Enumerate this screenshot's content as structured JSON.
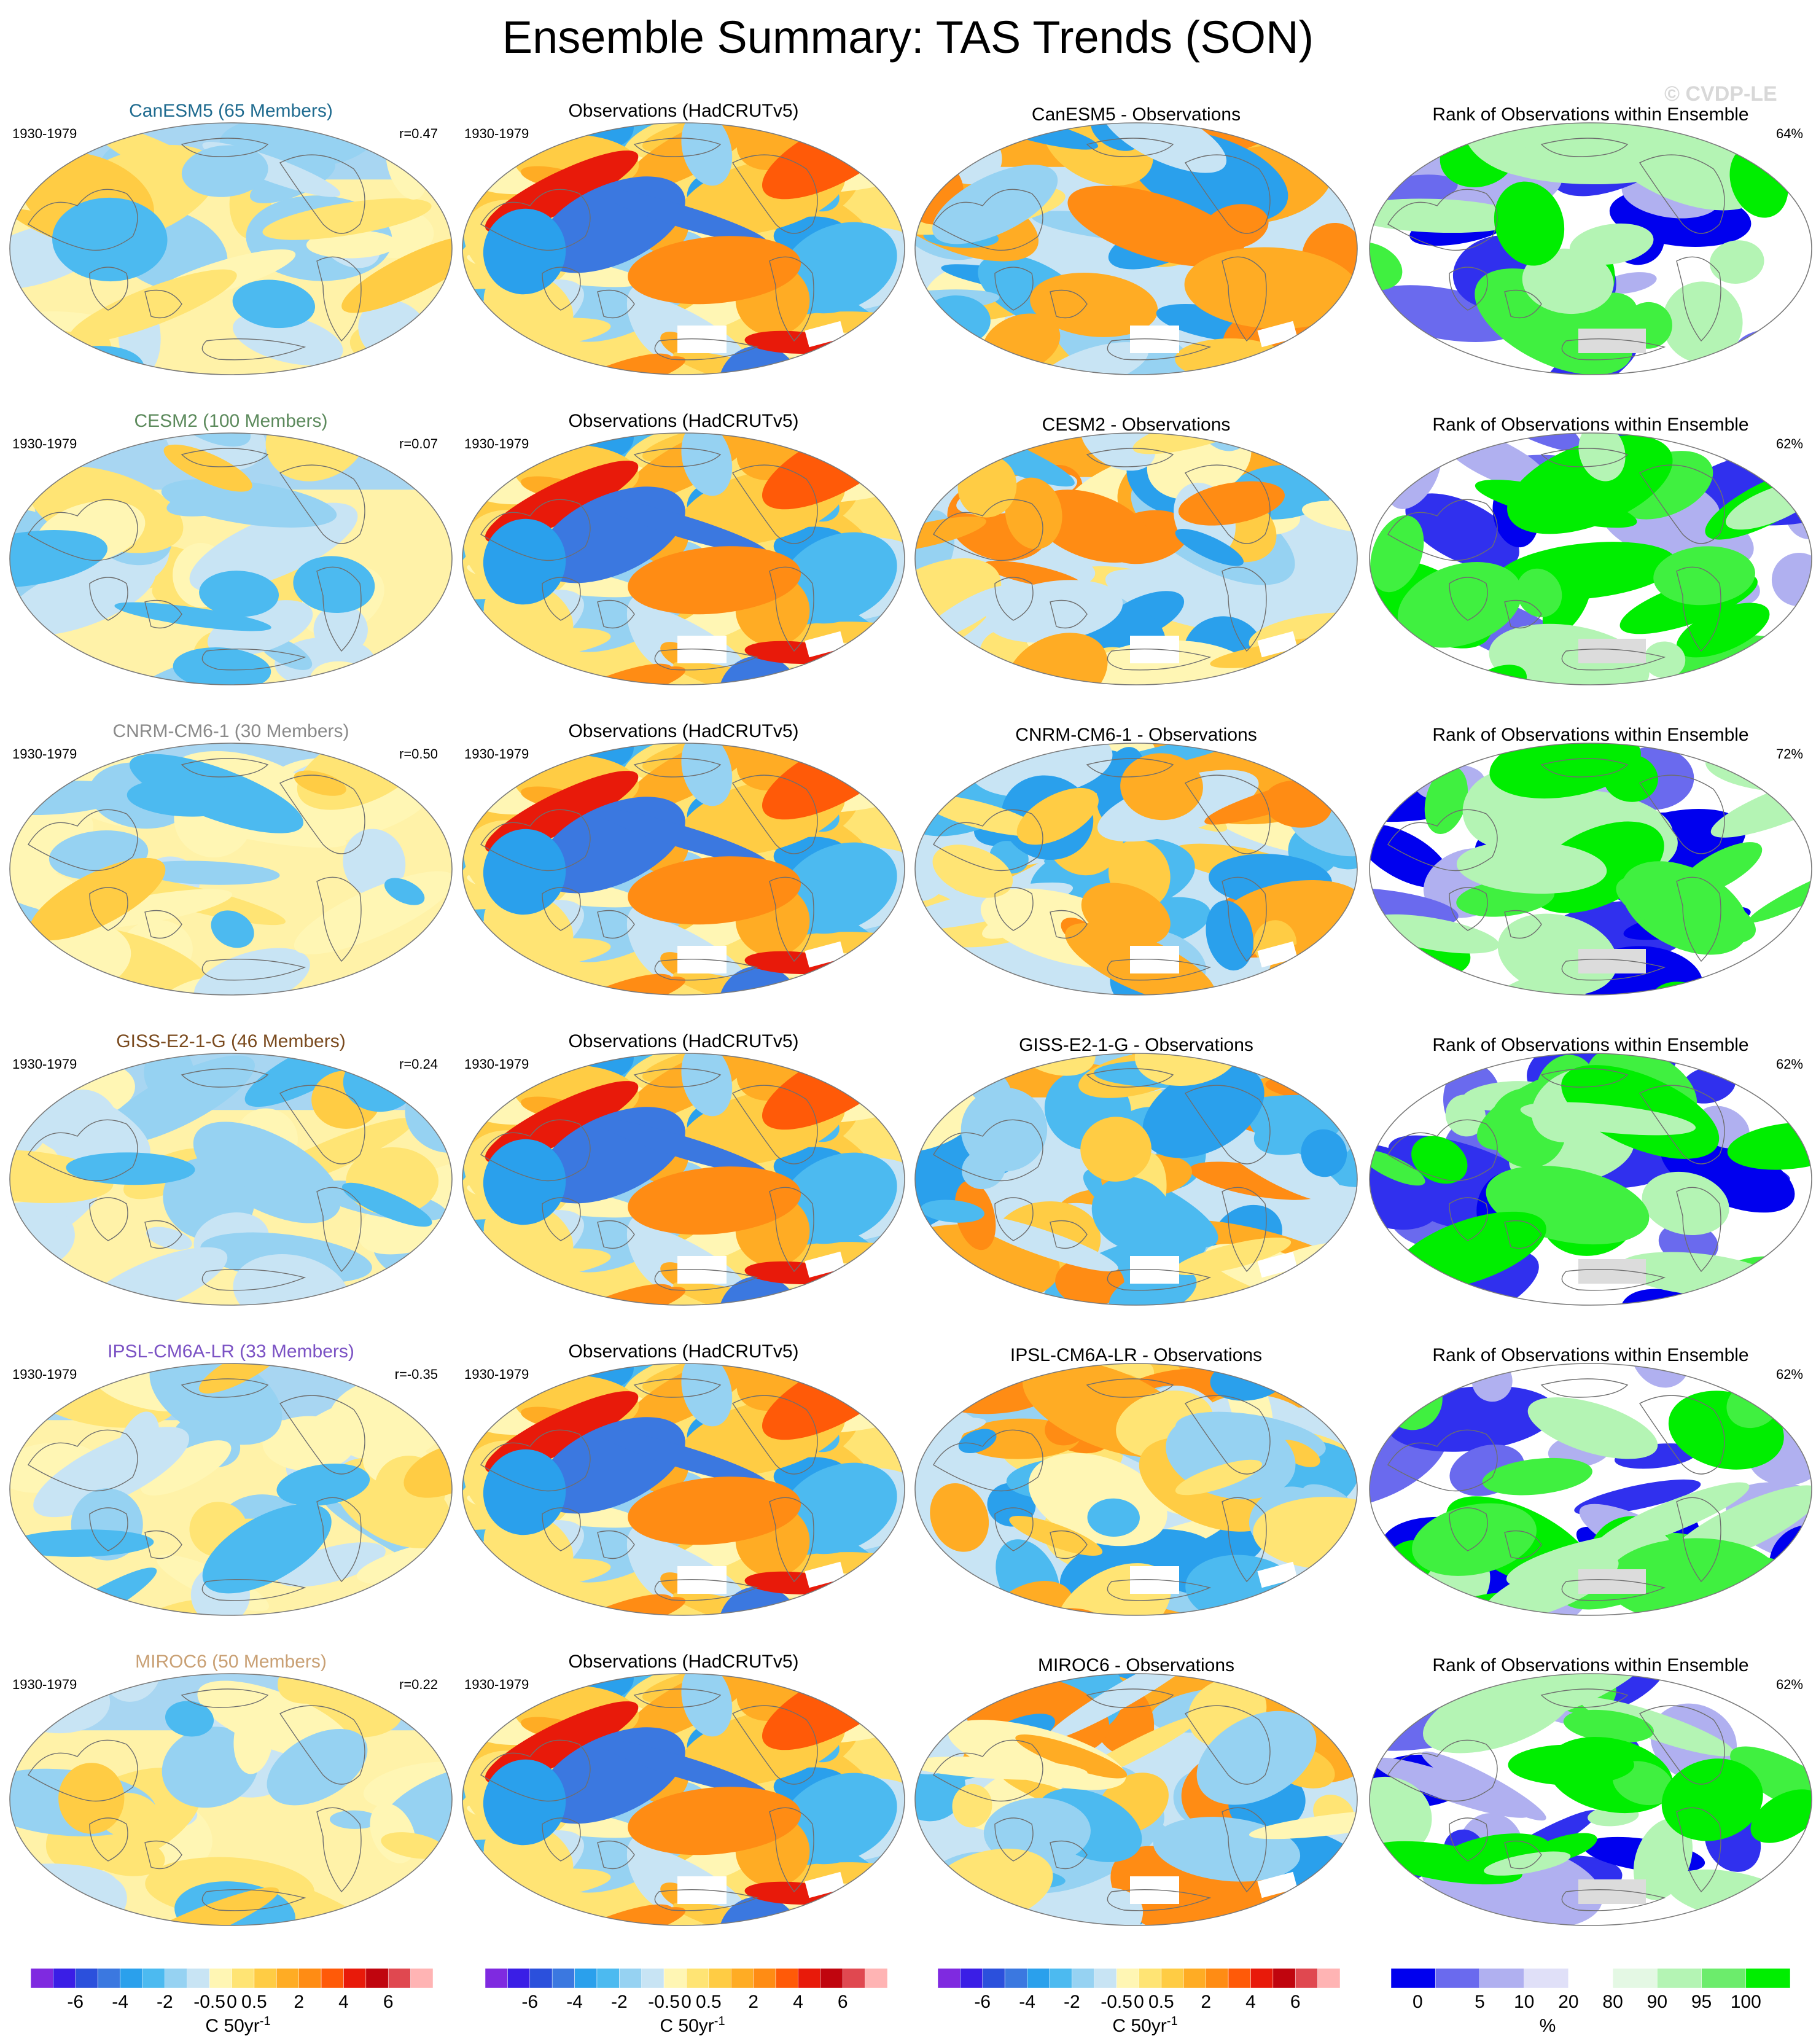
{
  "title": "Ensemble Summary: TAS Trends (SON)",
  "watermark": "© CVDP-LE",
  "period": "1930-1979",
  "rank_title": "Rank of Observations within Ensemble",
  "obs_title": "Observations (HadCRUTv5)",
  "rows": [
    {
      "model": "CanESM5",
      "model_title": "CanESM5 (65 Members)",
      "title_color": "#1f6b8f",
      "r": "r=0.47",
      "diff_title": "CanESM5 - Observations",
      "rank_pct": "64%"
    },
    {
      "model": "CESM2",
      "model_title": "CESM2 (100 Members)",
      "title_color": "#5c8a5c",
      "r": "r=0.07",
      "diff_title": "CESM2 - Observations",
      "rank_pct": "62%"
    },
    {
      "model": "CNRM-CM6-1",
      "model_title": "CNRM-CM6-1 (30 Members)",
      "title_color": "#8a8a8a",
      "r": "r=0.50",
      "diff_title": "CNRM-CM6-1 - Observations",
      "rank_pct": "72%"
    },
    {
      "model": "GISS-E2-1-G",
      "model_title": "GISS-E2-1-G (46 Members)",
      "title_color": "#7a4a1e",
      "r": "r=0.24",
      "diff_title": "GISS-E2-1-G - Observations",
      "rank_pct": "62%"
    },
    {
      "model": "IPSL-CM6A-LR",
      "model_title": "IPSL-CM6A-LR (33 Members)",
      "title_color": "#7b52c4",
      "r": "r=-0.35",
      "diff_title": "IPSL-CM6A-LR - Observations",
      "rank_pct": "62%"
    },
    {
      "model": "MIROC6",
      "model_title": "MIROC6 (50 Members)",
      "title_color": "#c9a074",
      "r": "r=0.22",
      "diff_title": "MIROC6 - Observations",
      "rank_pct": "62%"
    }
  ],
  "colorbars": {
    "trend": {
      "colors": [
        "#7f2ae0",
        "#3a1ee6",
        "#2b50dc",
        "#3b78e0",
        "#2aa0ec",
        "#4cbaf0",
        "#96d2f2",
        "#c8e4f4",
        "#fff6b4",
        "#ffe474",
        "#ffcc44",
        "#ffac24",
        "#ff8c14",
        "#ff5a08",
        "#e81a0a",
        "#c0050e",
        "#e04850",
        "#ffb4b4"
      ],
      "tick_labels": [
        "-6",
        "-4",
        "-2",
        "-0.5",
        "0",
        "0.5",
        "2",
        "4",
        "6"
      ],
      "label": "C 50yr",
      "label_sup": "-1"
    },
    "rank": {
      "colors": [
        "#0000ee",
        "#6a6aee",
        "#b0b0f0",
        "#e0e0f8",
        "#ffffff",
        "#e4f8e4",
        "#b4f4b4",
        "#6cec6c",
        "#00ee00"
      ],
      "tick_labels": [
        "0",
        "5",
        "10",
        "20",
        "80",
        "90",
        "95",
        "100"
      ],
      "label": "%"
    }
  }
}
